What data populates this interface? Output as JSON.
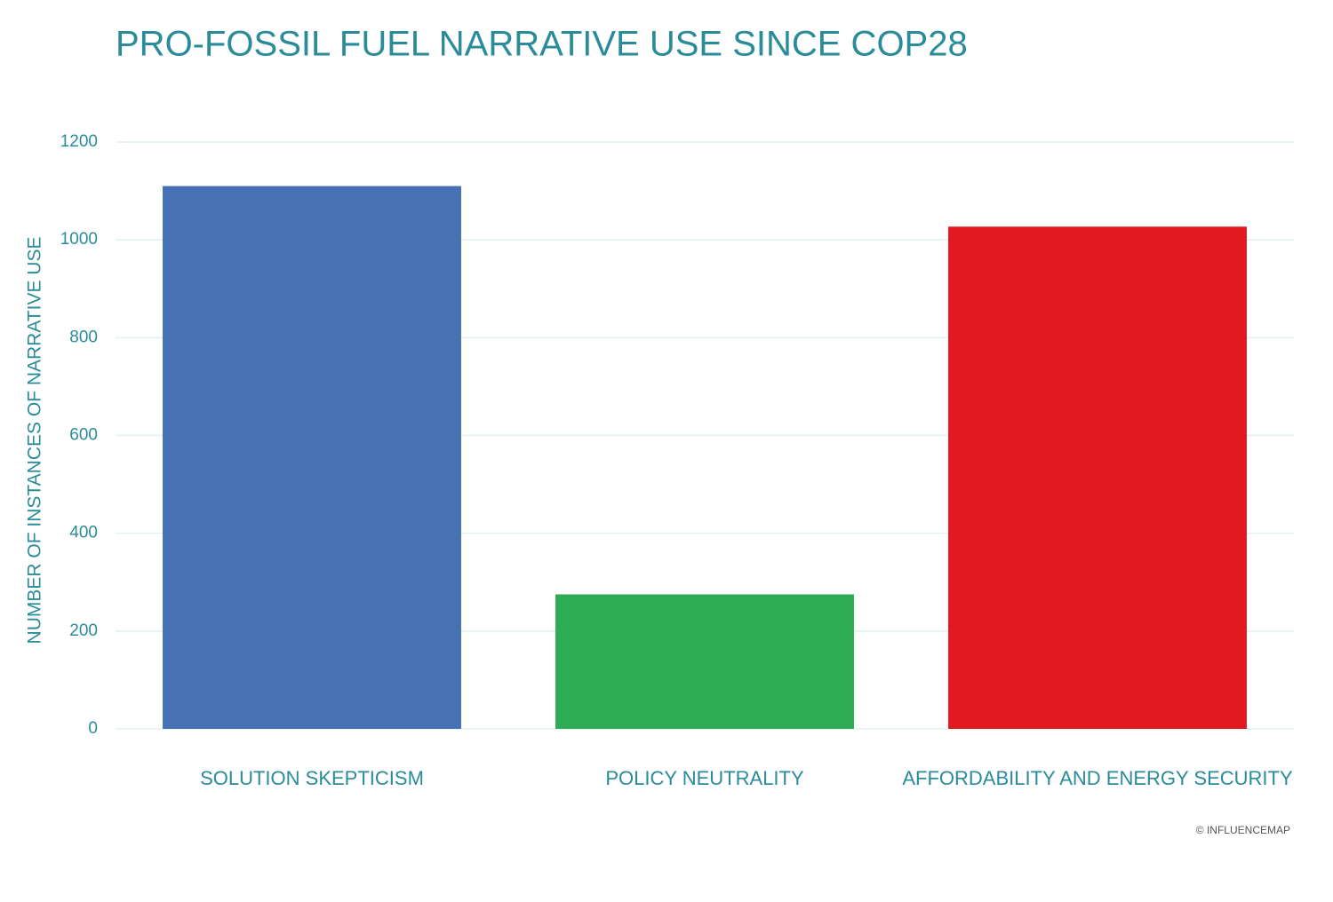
{
  "chart_data": {
    "type": "bar",
    "title": "PRO-FOSSIL FUEL NARRATIVE USE SINCE COP28",
    "y_label": "NUMBER OF INSTANCES OF NARRATIVE USE",
    "categories": [
      "SOLUTION SKEPTICISM",
      "POLICY NEUTRALITY",
      "AFFORDABILITY AND ENERGY SECURITY"
    ],
    "values": [
      1110,
      275,
      1027
    ],
    "colors": [
      "#4671b5",
      "#2eab55",
      "#e31922"
    ],
    "ylim": [
      0,
      1200
    ],
    "yticks": [
      0,
      200,
      400,
      600,
      800,
      1000,
      1200
    ],
    "grid": true,
    "source": "© INFLUENCEMAP"
  }
}
